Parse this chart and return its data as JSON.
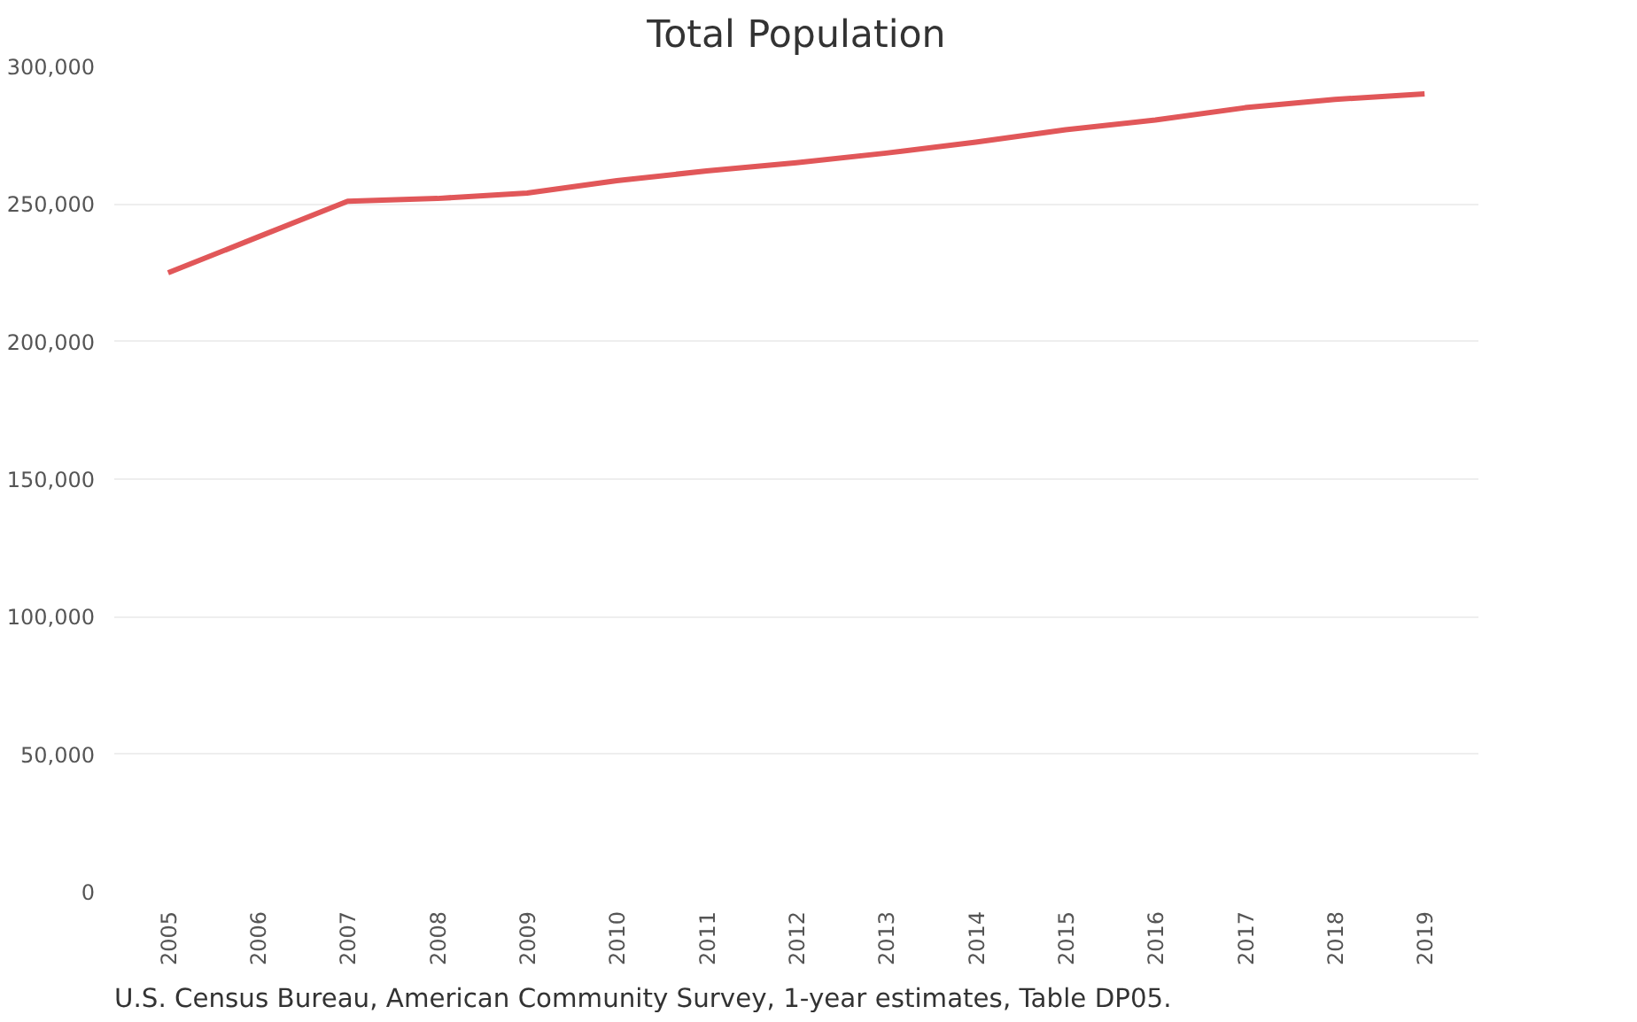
{
  "chart_data": {
    "type": "line",
    "title": "Total Population",
    "categories": [
      "2005",
      "2006",
      "2007",
      "2008",
      "2009",
      "2010",
      "2011",
      "2012",
      "2013",
      "2014",
      "2015",
      "2016",
      "2017",
      "2018",
      "2019"
    ],
    "series": [
      {
        "color": "#e15759",
        "values": [
          225000,
          238000,
          251000,
          252000,
          254000,
          258500,
          262000,
          265000,
          268500,
          272500,
          277000,
          280500,
          285000,
          288000,
          290000
        ]
      }
    ],
    "ylim": [
      0,
      300000
    ],
    "yticks": [
      {
        "value": 0,
        "label": "0"
      },
      {
        "value": 50000,
        "label": "50,000"
      },
      {
        "value": 100000,
        "label": "100,000"
      },
      {
        "value": 150000,
        "label": "150,000"
      },
      {
        "value": 200000,
        "label": "200,000"
      },
      {
        "value": 250000,
        "label": "250,000"
      },
      {
        "value": 300000,
        "label": "300,000"
      }
    ],
    "grid": "y",
    "marker": "none",
    "line_style": "solid",
    "annotations": [
      "U.S. Census Bureau, American Community Survey, 1-year estimates, Table DP05."
    ]
  }
}
